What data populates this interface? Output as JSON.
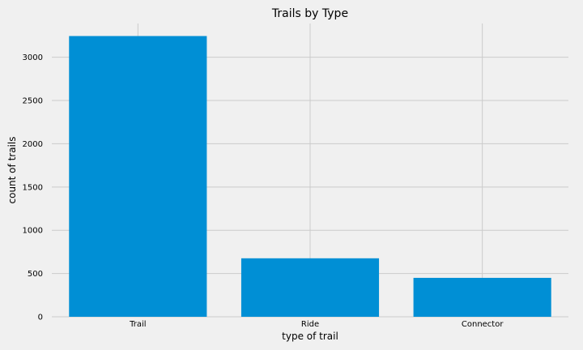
{
  "chart_data": {
    "type": "bar",
    "title": "Trails by Type",
    "xlabel": "type of trail",
    "ylabel": "count of trails",
    "categories": [
      "Trail",
      "Ride",
      "Connector"
    ],
    "values": [
      3245,
      676,
      450
    ],
    "ylim": [
      0,
      3390
    ],
    "yticks": [
      0,
      500,
      1000,
      1500,
      2000,
      2500,
      3000
    ],
    "ytick_labels": [
      "0",
      "500",
      "1000",
      "1500",
      "2000",
      "2500",
      "3000"
    ],
    "grid": true,
    "bar_color": "#008fd5",
    "grid_color": "#cbcbcb",
    "background_color": "#f0f0f0"
  }
}
